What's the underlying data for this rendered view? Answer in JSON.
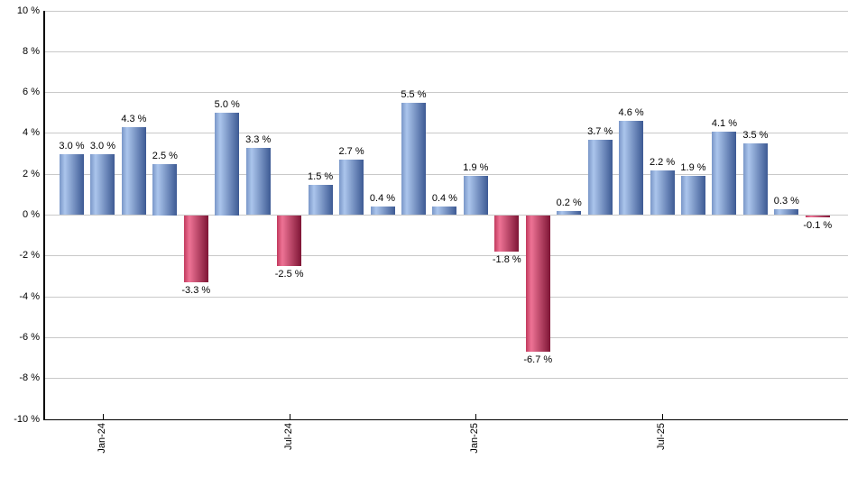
{
  "chart_data": {
    "type": "bar",
    "title": "",
    "xlabel": "",
    "ylabel": "",
    "ylim": [
      -10,
      10
    ],
    "y_tick_step": 2,
    "grid": true,
    "legend": false,
    "y_tick_labels": [
      "10 %",
      "8 %",
      "6 %",
      "4 %",
      "2 %",
      "0 %",
      "-2 %",
      "-4 %",
      "-6 %",
      "-8 %",
      "-10 %"
    ],
    "y_tick_values": [
      10,
      8,
      6,
      4,
      2,
      0,
      -2,
      -4,
      -6,
      -8,
      -10
    ],
    "x_ticks": [
      {
        "index": 1,
        "label": "Jan-24"
      },
      {
        "index": 7,
        "label": "Jul-24"
      },
      {
        "index": 13,
        "label": "Jan-25"
      },
      {
        "index": 19,
        "label": "Jul-25"
      }
    ],
    "values": [
      3.0,
      3.0,
      4.3,
      2.5,
      -3.3,
      5.0,
      3.3,
      -2.5,
      1.5,
      2.7,
      0.4,
      5.5,
      0.4,
      1.9,
      -1.8,
      -6.7,
      0.2,
      3.7,
      4.6,
      2.2,
      1.9,
      4.1,
      3.5,
      0.3,
      -0.1
    ],
    "data_labels": [
      "3.0 %",
      "3.0 %",
      "4.3 %",
      "2.5 %",
      "-3.3 %",
      "5.0 %",
      "3.3 %",
      "-2.5 %",
      "1.5 %",
      "2.7 %",
      "0.4 %",
      "5.5 %",
      "0.4 %",
      "1.9 %",
      "-1.8 %",
      "-6.7 %",
      "0.2 %",
      "3.7 %",
      "4.6 %",
      "2.2 %",
      "1.9 %",
      "4.1 %",
      "3.5 %",
      "0.3 %",
      "-0.1 %"
    ]
  },
  "colors": {
    "positive_edge": "#7a97c8",
    "positive_light": "#abc5ec",
    "positive_dark": "#3d5a94",
    "negative_edge": "#c13a5e",
    "negative_light": "#ee7395",
    "negative_dark": "#7e1535",
    "gridline": "#c9c9c9",
    "axis": "#000000",
    "label_text": "#000000"
  }
}
